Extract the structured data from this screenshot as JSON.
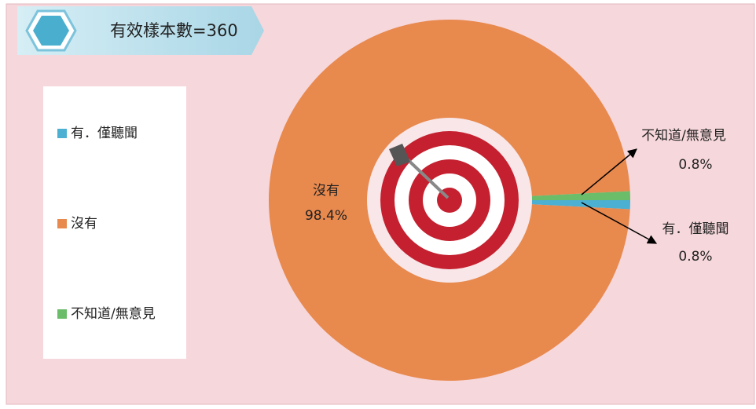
{
  "chart_data": {
    "type": "donut",
    "title": "有效樣本數=360",
    "categories": [
      "有．僅聽聞",
      "沒有",
      "不知道/無意見"
    ],
    "values": [
      0.8,
      98.4,
      0.8
    ],
    "value_labels": [
      "0.8%",
      "98.4%",
      "0.8%"
    ],
    "colors": [
      "#4bb0d2",
      "#e8894e",
      "#6bbd6a"
    ],
    "legend": "left"
  }
}
